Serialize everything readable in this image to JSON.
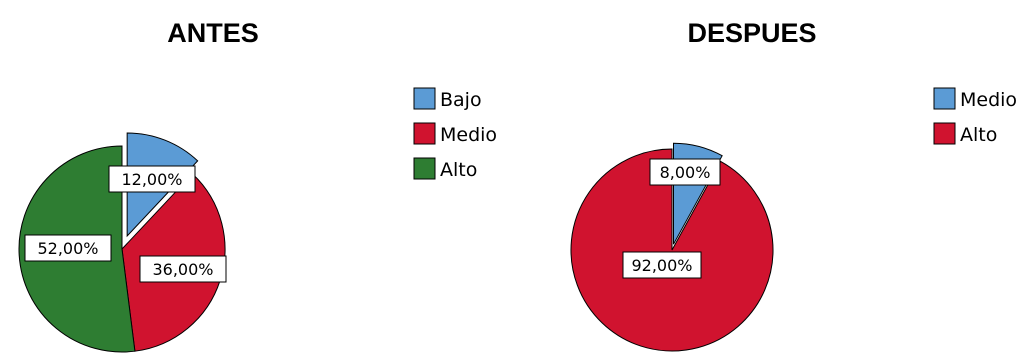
{
  "chart_data": [
    {
      "type": "pie",
      "title": "ANTES",
      "slices": [
        {
          "label": "Bajo",
          "value": 12,
          "display": "12,00%",
          "color": "#5b9bd5"
        },
        {
          "label": "Medio",
          "value": 36,
          "display": "36,00%",
          "color": "#d0132f"
        },
        {
          "label": "Alto",
          "value": 52,
          "display": "52,00%",
          "color": "#2e7d32"
        }
      ],
      "legend": [
        "Bajo",
        "Medio",
        "Alto"
      ],
      "legend_position": "right"
    },
    {
      "type": "pie",
      "title": "DESPUES",
      "slices": [
        {
          "label": "Medio",
          "value": 8,
          "display": "8,00%",
          "color": "#5b9bd5"
        },
        {
          "label": "Alto",
          "value": 92,
          "display": "92,00%",
          "color": "#d0132f"
        }
      ],
      "legend": [
        "Medio",
        "Alto"
      ],
      "legend_position": "right"
    }
  ]
}
